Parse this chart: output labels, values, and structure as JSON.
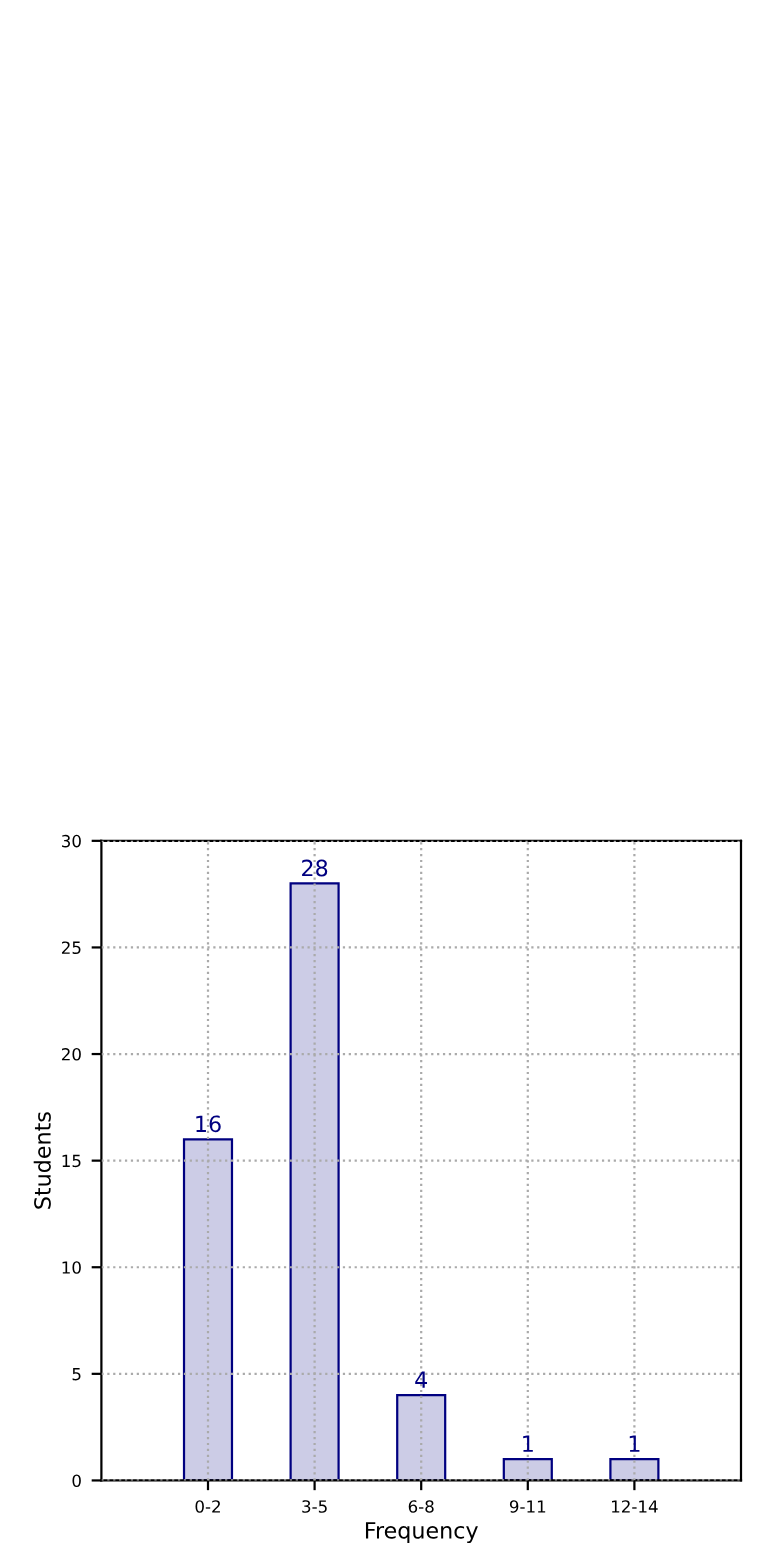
{
  "chart_data": {
    "type": "bar",
    "xlabel": "Frequency",
    "ylabel": "Students",
    "categories": [
      "0-2",
      "3-5",
      "6-8",
      "9-11",
      "12-14"
    ],
    "series": [
      {
        "color": "#ccccE6",
        "values": [
          16,
          28,
          4,
          1,
          1
        ]
      }
    ],
    "ylim": [
      0,
      30
    ],
    "yticks": [
      0,
      5,
      10,
      15,
      20,
      25,
      30
    ],
    "grid": true,
    "data_labels": true,
    "legend": false
  }
}
